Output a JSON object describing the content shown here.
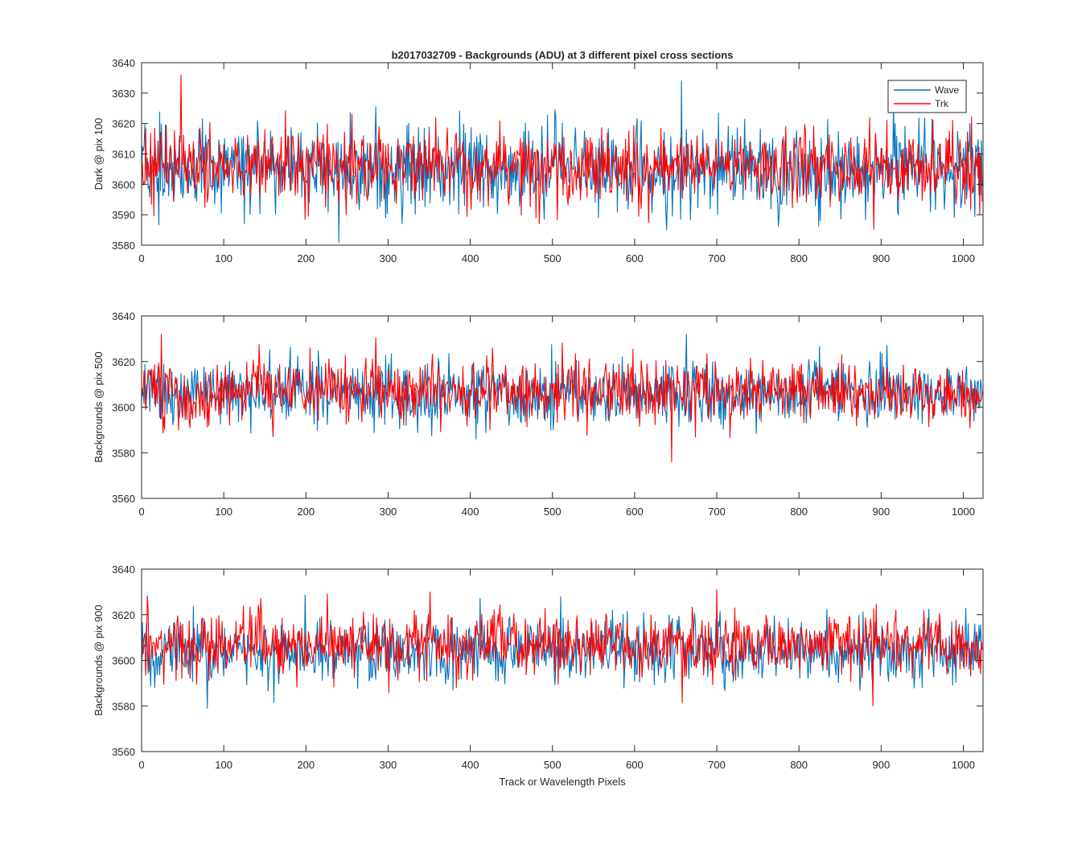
{
  "figure": {
    "title": "b2017032709 - Backgrounds (ADU) at 3 different pixel cross sections",
    "xlabel": "Track or Wavelength Pixels"
  },
  "colors": {
    "wave": "#0072BD",
    "trk": "#FF0000",
    "axis": "#262626",
    "background": "#FFFFFF"
  },
  "legend": {
    "entries": [
      "Wave",
      "Trk"
    ],
    "position": "top-right (first panel)"
  },
  "chart_data": [
    {
      "type": "line",
      "title": "b2017032709 - Backgrounds (ADU) at 3 different pixel cross sections",
      "xlabel": "",
      "ylabel": "Dark @ pix 100",
      "xlim": [
        0,
        1024
      ],
      "ylim": [
        3580,
        3640
      ],
      "xticks": [
        0,
        100,
        200,
        300,
        400,
        500,
        600,
        700,
        800,
        900,
        1000
      ],
      "yticks": [
        3580,
        3590,
        3600,
        3610,
        3620,
        3630,
        3640
      ],
      "series": [
        {
          "name": "Wave",
          "mean": 3605,
          "noise_sd": 7,
          "n_points": 1024
        },
        {
          "name": "Trk",
          "mean": 3606,
          "noise_sd": 6,
          "n_points": 1024
        }
      ],
      "notable_values": [
        {
          "series": "Trk",
          "x": 48,
          "y": 3636
        },
        {
          "series": "Wave",
          "x": 657,
          "y": 3634
        },
        {
          "series": "Wave",
          "x": 240,
          "y": 3581
        }
      ]
    },
    {
      "type": "line",
      "xlabel": "",
      "ylabel": "Backgrounds @ pix 500",
      "xlim": [
        0,
        1024
      ],
      "ylim": [
        3560,
        3640
      ],
      "xticks": [
        0,
        100,
        200,
        300,
        400,
        500,
        600,
        700,
        800,
        900,
        1000
      ],
      "yticks": [
        3560,
        3580,
        3600,
        3620,
        3640
      ],
      "series": [
        {
          "name": "Wave",
          "mean": 3606,
          "noise_sd": 7,
          "n_points": 1024
        },
        {
          "name": "Trk",
          "mean": 3607,
          "noise_sd": 7,
          "n_points": 1024
        }
      ],
      "notable_values": [
        {
          "series": "Wave",
          "x": 663,
          "y": 3632
        },
        {
          "series": "Trk",
          "x": 24,
          "y": 3632
        },
        {
          "series": "Trk",
          "x": 645,
          "y": 3576
        }
      ]
    },
    {
      "type": "line",
      "xlabel": "Track or Wavelength Pixels",
      "ylabel": "Backgrounds @ pix 900",
      "xlim": [
        0,
        1024
      ],
      "ylim": [
        3560,
        3640
      ],
      "xticks": [
        0,
        100,
        200,
        300,
        400,
        500,
        600,
        700,
        800,
        900,
        1000
      ],
      "yticks": [
        3560,
        3580,
        3600,
        3620,
        3640
      ],
      "series": [
        {
          "name": "Wave",
          "mean": 3604,
          "noise_sd": 7,
          "n_points": 1024
        },
        {
          "name": "Trk",
          "mean": 3607,
          "noise_sd": 7,
          "n_points": 1024
        }
      ],
      "notable_values": [
        {
          "series": "Trk",
          "x": 700,
          "y": 3631
        },
        {
          "series": "Wave",
          "x": 80,
          "y": 3579
        },
        {
          "series": "Trk",
          "x": 890,
          "y": 3580
        }
      ]
    }
  ]
}
